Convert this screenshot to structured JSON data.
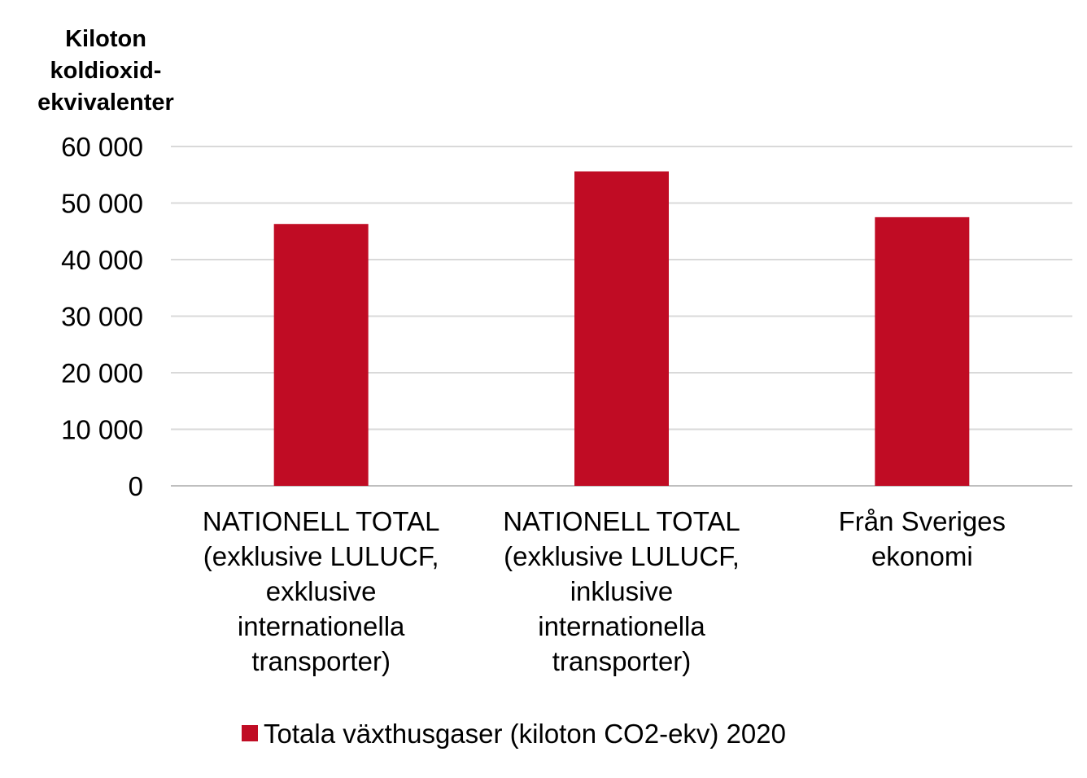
{
  "chart_data": {
    "type": "bar",
    "ylabel_lines": [
      "Kiloton",
      "koldioxid-",
      "ekvivalenter"
    ],
    "ylim": [
      0,
      60000
    ],
    "yticks": [
      0,
      10000,
      20000,
      30000,
      40000,
      50000,
      60000
    ],
    "ytick_labels": [
      "0",
      "10 000",
      "20 000",
      "30 000",
      "40 000",
      "50 000",
      "60 000"
    ],
    "grid": true,
    "categories": [
      [
        "NATIONELL TOTAL",
        "(exklusive LULUCF,",
        "exklusive",
        "internationella",
        "transporter)"
      ],
      [
        "NATIONELL TOTAL",
        "(exklusive LULUCF,",
        "inklusive",
        "internationella",
        "transporter)"
      ],
      [
        "Från Sveriges",
        "ekonomi"
      ]
    ],
    "series": [
      {
        "name": "Totala växthusgaser (kiloton CO2-ekv) 2020",
        "color": "#c00c24",
        "values": [
          46300,
          55600,
          47500
        ]
      }
    ],
    "legend_position": "bottom"
  }
}
